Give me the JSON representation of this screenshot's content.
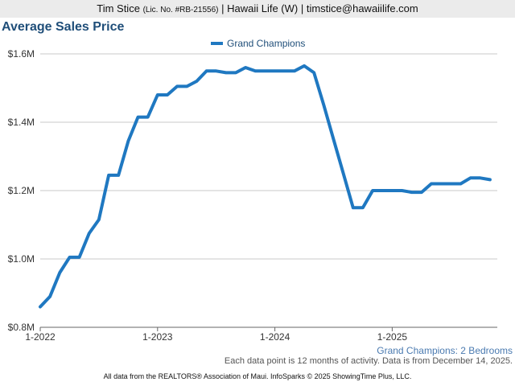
{
  "header": {
    "name": "Tim Stice",
    "license": "(Lic. No. #RB-21556)",
    "rest": "| Hawaii Life (W) | timstice@hawaiilife.com"
  },
  "chart_data": {
    "type": "line",
    "title": "Average Sales Price",
    "subtitle_label": "Grand Champions: 2 Bedrooms",
    "legend": {
      "placement": "top-center"
    },
    "series": [
      {
        "name": "Grand Champions",
        "color": "#1f78c1",
        "values": [
          0.86,
          0.89,
          0.96,
          1.005,
          1.005,
          1.075,
          1.115,
          1.245,
          1.245,
          1.345,
          1.415,
          1.415,
          1.48,
          1.48,
          1.505,
          1.505,
          1.52,
          1.55,
          1.55,
          1.545,
          1.545,
          1.56,
          1.55,
          1.55,
          1.55,
          1.55,
          1.55,
          1.565,
          1.545,
          1.45,
          1.35,
          1.25,
          1.15,
          1.15,
          1.2,
          1.2,
          1.2,
          1.2,
          1.195,
          1.195,
          1.22,
          1.22,
          1.22,
          1.22,
          1.237,
          1.237,
          1.232
        ]
      }
    ],
    "x_start": "2022-01",
    "x_tick_labels": [
      "1-2022",
      "1-2023",
      "1-2024",
      "1-2025"
    ],
    "x_tick_index": [
      0,
      12,
      24,
      36
    ],
    "y_tick_labels": [
      "$0.8M",
      "$1.0M",
      "$1.2M",
      "$1.4M",
      "$1.6M"
    ],
    "y_ticks": [
      0.8,
      1.0,
      1.2,
      1.4,
      1.6
    ],
    "ylim": [
      0.8,
      1.6
    ],
    "grid": true,
    "y_unit": "$M"
  },
  "footnote": "Each data point is 12 months of activity. Data is from December 14, 2025.",
  "footer": "All data from the REALTORS® Association of Maui. InfoSparks © 2025 ShowingTime Plus, LLC."
}
